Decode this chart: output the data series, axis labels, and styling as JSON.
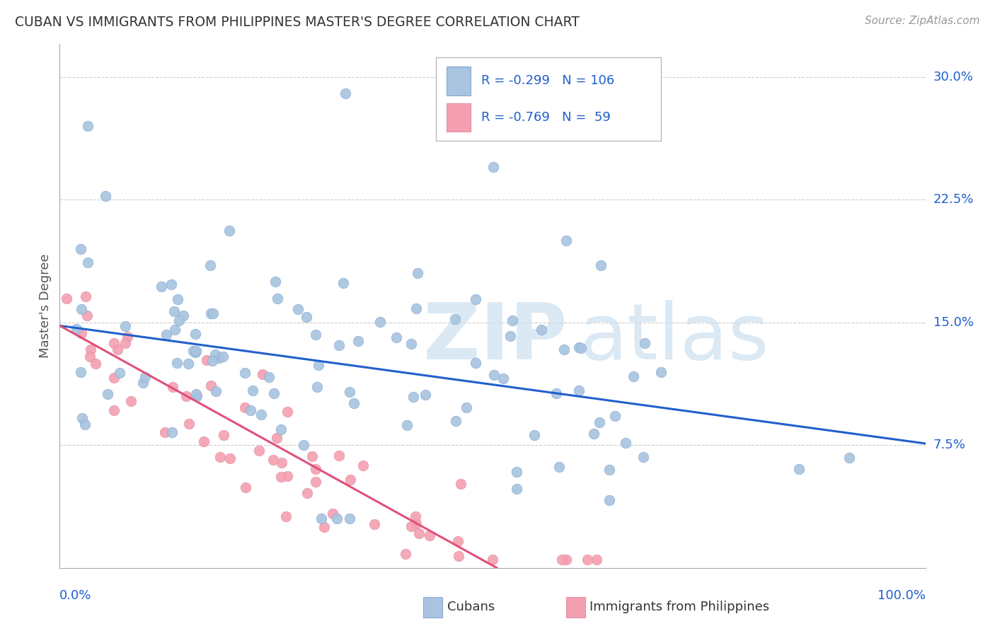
{
  "title": "CUBAN VS IMMIGRANTS FROM PHILIPPINES MASTER'S DEGREE CORRELATION CHART",
  "source": "Source: ZipAtlas.com",
  "ylabel": "Master's Degree",
  "xlim": [
    0.0,
    1.0
  ],
  "ylim": [
    0.0,
    0.32
  ],
  "yticks": [
    0.075,
    0.15,
    0.225,
    0.3
  ],
  "ytick_labels": [
    "7.5%",
    "15.0%",
    "22.5%",
    "30.0%"
  ],
  "legend_r1": "R = -0.299",
  "legend_n1": "N = 106",
  "legend_r2": "R = -0.769",
  "legend_n2": "N =  59",
  "cubans_color": "#a8c4e0",
  "philippines_color": "#f4a0b0",
  "trend_blue": "#2060cc",
  "trend_pink": "#e0507a",
  "legend_text_color": "#2060cc",
  "watermark_color": "#cce0f0",
  "background_color": "#ffffff",
  "grid_color": "#cccccc",
  "title_color": "#333333",
  "source_color": "#999999",
  "ylabel_color": "#555555",
  "axis_color": "#aaaaaa",
  "cubans_trend_x": [
    0.0,
    1.0
  ],
  "cubans_trend_y": [
    0.148,
    0.076
  ],
  "phil_trend_x": [
    0.0,
    0.505
  ],
  "phil_trend_y": [
    0.148,
    0.0
  ]
}
